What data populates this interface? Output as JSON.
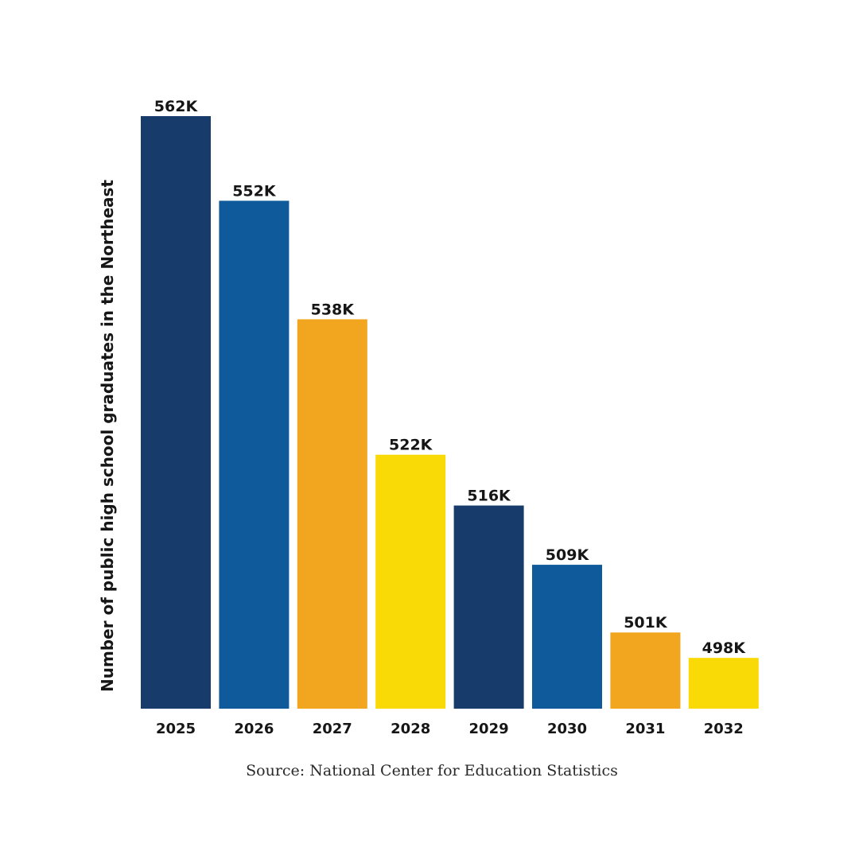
{
  "chart_data": {
    "type": "bar",
    "title": "",
    "xlabel": "",
    "ylabel": "Number of public high school graduates in the Northeast",
    "categories": [
      "2025",
      "2026",
      "2027",
      "2028",
      "2029",
      "2030",
      "2031",
      "2032"
    ],
    "values": [
      562,
      552,
      538,
      522,
      516,
      509,
      501,
      498
    ],
    "value_labels": [
      "562K",
      "552K",
      "538K",
      "522K",
      "516K",
      "509K",
      "501K",
      "498K"
    ],
    "unit": "thousands",
    "ylim": [
      492,
      562
    ],
    "grid": false,
    "colors": [
      "#173c6b",
      "#0e5a9b",
      "#f2a51f",
      "#f9d906",
      "#173c6b",
      "#0e5a9b",
      "#f2a51f",
      "#f9d906"
    ]
  },
  "source": "Source: National Center for Education Statistics"
}
